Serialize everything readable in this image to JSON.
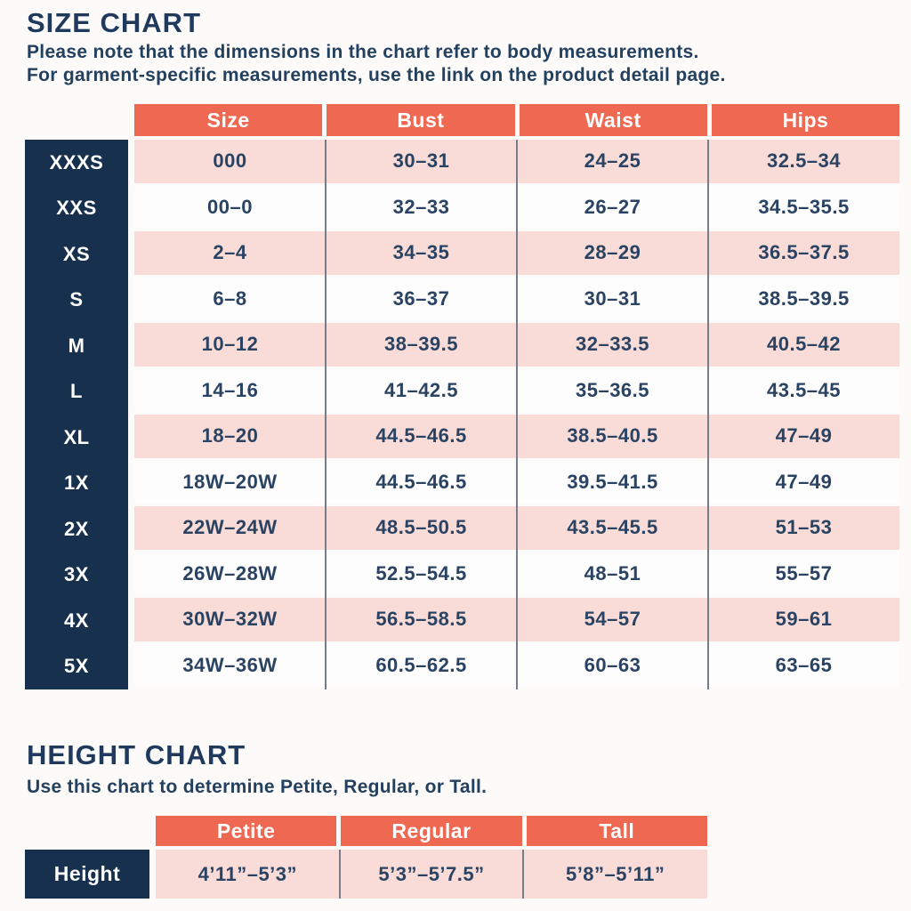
{
  "size_chart": {
    "title": "SIZE CHART",
    "subtitle_line1": "Please note that the dimensions in the chart refer to body measurements.",
    "subtitle_line2": "For garment-specific measurements, use the link on the product detail page.",
    "columns": [
      "Size",
      "Bust",
      "Waist",
      "Hips"
    ],
    "rows": [
      {
        "label": "XXXS",
        "size": "000",
        "bust": "30–31",
        "waist": "24–25",
        "hips": "32.5–34"
      },
      {
        "label": "XXS",
        "size": "00–0",
        "bust": "32–33",
        "waist": "26–27",
        "hips": "34.5–35.5"
      },
      {
        "label": "XS",
        "size": "2–4",
        "bust": "34–35",
        "waist": "28–29",
        "hips": "36.5–37.5"
      },
      {
        "label": "S",
        "size": "6–8",
        "bust": "36–37",
        "waist": "30–31",
        "hips": "38.5–39.5"
      },
      {
        "label": "M",
        "size": "10–12",
        "bust": "38–39.5",
        "waist": "32–33.5",
        "hips": "40.5–42"
      },
      {
        "label": "L",
        "size": "14–16",
        "bust": "41–42.5",
        "waist": "35–36.5",
        "hips": "43.5–45"
      },
      {
        "label": "XL",
        "size": "18–20",
        "bust": "44.5–46.5",
        "waist": "38.5–40.5",
        "hips": "47–49"
      },
      {
        "label": "1X",
        "size": "18W–20W",
        "bust": "44.5–46.5",
        "waist": "39.5–41.5",
        "hips": "47–49"
      },
      {
        "label": "2X",
        "size": "22W–24W",
        "bust": "48.5–50.5",
        "waist": "43.5–45.5",
        "hips": "51–53"
      },
      {
        "label": "3X",
        "size": "26W–28W",
        "bust": "52.5–54.5",
        "waist": "48–51",
        "hips": "55–57"
      },
      {
        "label": "4X",
        "size": "30W–32W",
        "bust": "56.5–58.5",
        "waist": "54–57",
        "hips": "59–61"
      },
      {
        "label": "5X",
        "size": "34W–36W",
        "bust": "60.5–62.5",
        "waist": "60–63",
        "hips": "63–65"
      }
    ]
  },
  "height_chart": {
    "title": "HEIGHT CHART",
    "subtitle": "Use this chart to determine Petite, Regular, or Tall.",
    "columns": [
      "Petite",
      "Regular",
      "Tall"
    ],
    "row_label": "Height",
    "values": [
      "4’11”–5’3”",
      "5’3”–5’7.5”",
      "5’8”–5’11”"
    ]
  },
  "colors": {
    "coral_header": "#ee6852",
    "navy_label": "#17304d",
    "pink_row": "#f9dcd7",
    "text_navy": "#2a4363",
    "divider_gray": "#757d8d"
  }
}
